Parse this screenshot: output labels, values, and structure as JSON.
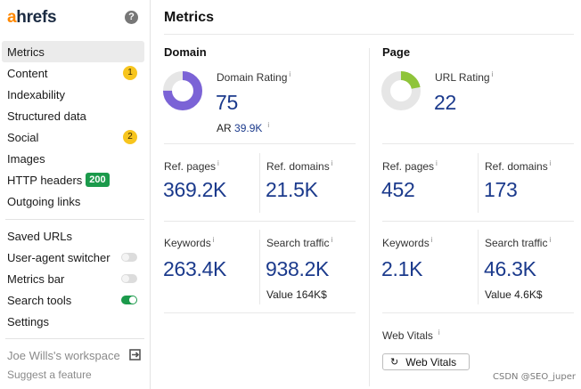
{
  "brand": {
    "logo_first": "a",
    "logo_rest": "hrefs"
  },
  "sidebar": {
    "items": [
      {
        "label": "Metrics"
      },
      {
        "label": "Content",
        "badge": "1"
      },
      {
        "label": "Indexability"
      },
      {
        "label": "Structured data"
      },
      {
        "label": "Social",
        "badge": "2"
      },
      {
        "label": "Images"
      },
      {
        "label": "HTTP headers",
        "status": "200"
      },
      {
        "label": "Outgoing links"
      }
    ],
    "tools": [
      {
        "label": "Saved URLs"
      },
      {
        "label": "User-agent switcher",
        "toggle": "off"
      },
      {
        "label": "Metrics bar",
        "toggle": "off"
      },
      {
        "label": "Search tools",
        "toggle": "on"
      },
      {
        "label": "Settings"
      }
    ],
    "workspace": "Joe Wills's workspace",
    "suggest": "Suggest a feature"
  },
  "main": {
    "title": "Metrics",
    "info_mark": "i",
    "domain": {
      "heading": "Domain",
      "rating_label": "Domain Rating",
      "rating_value": "75",
      "rating_fraction": 0.75,
      "ar_label": "AR",
      "ar_value": "39.9K",
      "ref_pages_label": "Ref. pages",
      "ref_pages_value": "369.2K",
      "ref_domains_label": "Ref. domains",
      "ref_domains_value": "21.5K",
      "keywords_label": "Keywords",
      "keywords_value": "263.4K",
      "traffic_label": "Search traffic",
      "traffic_value": "938.2K",
      "traffic_sub": "Value 164K$"
    },
    "page": {
      "heading": "Page",
      "rating_label": "URL Rating",
      "rating_value": "22",
      "rating_fraction": 0.22,
      "ref_pages_label": "Ref. pages",
      "ref_pages_value": "452",
      "ref_domains_label": "Ref. domains",
      "ref_domains_value": "173",
      "keywords_label": "Keywords",
      "keywords_value": "2.1K",
      "traffic_label": "Search traffic",
      "traffic_value": "46.3K",
      "traffic_sub": "Value 4.6K$",
      "web_vitals_label": "Web Vitals",
      "web_vitals_button": "Web Vitals"
    }
  },
  "colors": {
    "domain_rating": "#7b63d6",
    "url_rating": "#8fc43a",
    "track": "#e6e6e6"
  },
  "watermark": "CSDN @SEO_juper"
}
